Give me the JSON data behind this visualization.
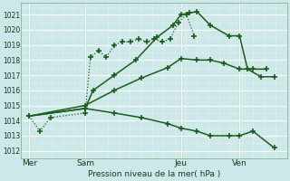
{
  "xlabel": "Pression niveau de la mer( hPa )",
  "background_color": "#cce8e8",
  "grid_color_major": "#ffffff",
  "grid_color_minor": "#e0f0f0",
  "line_color": "#1a5e1a",
  "ylim": [
    1011.5,
    1021.8
  ],
  "xlim": [
    0,
    10.0
  ],
  "yticks": [
    1012,
    1013,
    1014,
    1015,
    1016,
    1017,
    1018,
    1019,
    1020,
    1021
  ],
  "day_labels": [
    "Mer",
    "Sam",
    "Jeu",
    "Ven"
  ],
  "day_positions": [
    0.3,
    2.4,
    6.0,
    8.2
  ],
  "vline_positions": [
    0.3,
    2.4,
    6.0,
    8.2
  ],
  "series": [
    {
      "x": [
        0.3,
        0.7,
        1.1,
        2.4,
        2.6,
        2.9,
        3.2,
        3.5,
        3.8,
        4.1,
        4.4,
        4.7,
        5.0,
        5.3,
        5.6,
        5.9,
        6.2,
        6.5
      ],
      "y": [
        1014.3,
        1013.3,
        1014.2,
        1014.5,
        1018.2,
        1018.6,
        1018.2,
        1019.0,
        1019.2,
        1019.2,
        1019.4,
        1019.2,
        1019.4,
        1019.2,
        1019.4,
        1020.5,
        1021.0,
        1019.6
      ],
      "style": "dotted",
      "marker": "+",
      "markersize": 4,
      "linewidth": 0.9
    },
    {
      "x": [
        0.3,
        2.4,
        2.7,
        3.5,
        4.3,
        5.1,
        5.7,
        6.0,
        6.3,
        6.6,
        7.1,
        7.8,
        8.2,
        8.5,
        9.0,
        9.5
      ],
      "y": [
        1014.3,
        1014.8,
        1016.0,
        1017.0,
        1018.0,
        1019.5,
        1020.3,
        1021.0,
        1021.1,
        1021.2,
        1020.3,
        1019.6,
        1019.6,
        1017.4,
        1016.9,
        1016.9
      ],
      "style": "solid",
      "marker": "+",
      "markersize": 4,
      "linewidth": 1.1
    },
    {
      "x": [
        0.3,
        2.4,
        3.5,
        4.5,
        5.5,
        6.0,
        6.6,
        7.1,
        7.6,
        8.2,
        8.7,
        9.2
      ],
      "y": [
        1014.3,
        1015.0,
        1016.0,
        1016.8,
        1017.5,
        1018.1,
        1018.0,
        1018.0,
        1017.8,
        1017.4,
        1017.4,
        1017.4
      ],
      "style": "solid",
      "marker": "+",
      "markersize": 4,
      "linewidth": 1.1
    },
    {
      "x": [
        0.3,
        2.4,
        3.5,
        4.5,
        5.5,
        6.0,
        6.6,
        7.1,
        7.8,
        8.2,
        8.7,
        9.5
      ],
      "y": [
        1014.3,
        1014.8,
        1014.5,
        1014.2,
        1013.8,
        1013.5,
        1013.3,
        1013.0,
        1013.0,
        1013.0,
        1013.3,
        1012.2
      ],
      "style": "solid",
      "marker": "+",
      "markersize": 4,
      "linewidth": 1.1
    }
  ]
}
